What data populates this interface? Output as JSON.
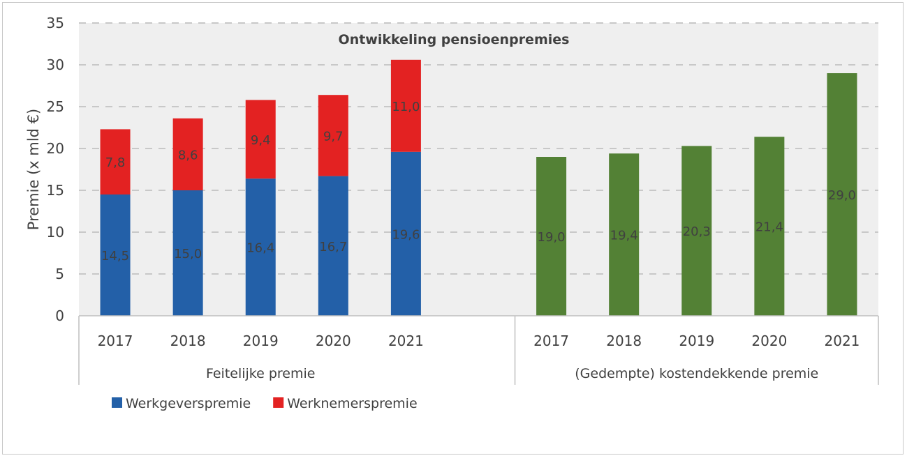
{
  "chart_data": {
    "type": "bar",
    "title": "Ontwikkeling pensioenpremies",
    "ylabel": "Premie (x mld €)",
    "xlabel": "",
    "ylim": [
      0,
      35
    ],
    "yticks": [
      0,
      5,
      10,
      15,
      20,
      25,
      30,
      35
    ],
    "grid": true,
    "legend_position": "bottom-left",
    "groups": [
      {
        "label": "Feitelijke premie",
        "categories": [
          "2017",
          "2018",
          "2019",
          "2020",
          "2021"
        ],
        "stacked": true,
        "series": [
          {
            "name": "Werkgeverspremie",
            "color": "#2360a8",
            "values": [
              14.5,
              15.0,
              16.4,
              16.7,
              19.6
            ],
            "labels": [
              "14,5",
              "15,0",
              "16,4",
              "16,7",
              "19,6"
            ]
          },
          {
            "name": "Werknemerspremie",
            "color": "#e32222",
            "values": [
              7.8,
              8.6,
              9.4,
              9.7,
              11.0
            ],
            "labels": [
              "7,8",
              "8,6",
              "9,4",
              "9,7",
              "11,0"
            ]
          }
        ]
      },
      {
        "label": "(Gedempte) kostendekkende premie",
        "categories": [
          "2017",
          "2018",
          "2019",
          "2020",
          "2021"
        ],
        "stacked": false,
        "series": [
          {
            "name": "Kostendekkende premie",
            "color": "#538135",
            "values": [
              19.0,
              19.4,
              20.3,
              21.4,
              29.0
            ],
            "labels": [
              "19,0",
              "19,4",
              "20,3",
              "21,4",
              "29,0"
            ]
          }
        ]
      }
    ],
    "legend": [
      {
        "label": "Werkgeverspremie",
        "color": "#2360a8"
      },
      {
        "label": "Werknemerspremie",
        "color": "#e32222"
      }
    ]
  }
}
